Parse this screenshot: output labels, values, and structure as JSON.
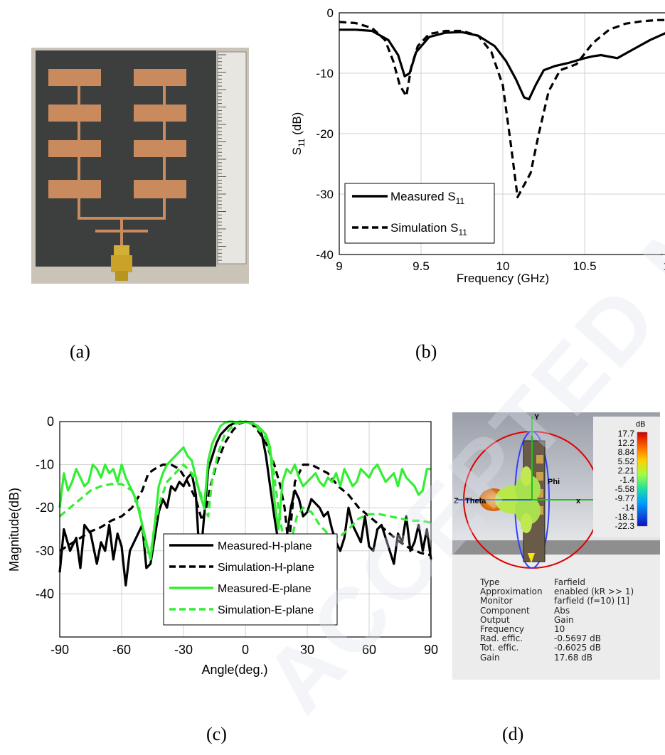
{
  "labels": {
    "a": "(a)",
    "b": "(b)",
    "c": "(c)",
    "d": "(d)"
  },
  "watermark": "ACCEPTED MANUSCRIPT",
  "colors": {
    "measured_e": "#33ee33",
    "simulated_e": "#33ee33",
    "measured_h": "#000000",
    "simulated_h": "#000000"
  },
  "chart_data": [
    {
      "type": "line",
      "xlabel": "Frequency (GHz)",
      "ylabel": "S11 (dB)",
      "ylabel_main": "S",
      "ylabel_sub": "11",
      "ylabel_suffix": " (dB)",
      "xlim": [
        9,
        11
      ],
      "ylim": [
        -40,
        0
      ],
      "xticks": [
        "9",
        "9.5",
        "10",
        "10.5",
        "1"
      ],
      "yticks": [
        "0",
        "-10",
        "-20",
        "-30",
        "-40"
      ],
      "grid": true,
      "legend_position": "bottom-left",
      "series": [
        {
          "name": "Measured S11",
          "name_main": "Measured S",
          "name_sub": "11",
          "style": "solid",
          "x": [
            9.0,
            9.1,
            9.2,
            9.3,
            9.36,
            9.4,
            9.43,
            9.47,
            9.55,
            9.65,
            9.75,
            9.85,
            9.95,
            10.02,
            10.08,
            10.13,
            10.16,
            10.2,
            10.25,
            10.32,
            10.4,
            10.5,
            10.55,
            10.6,
            10.7,
            10.8,
            10.9,
            11.0
          ],
          "y": [
            -2.8,
            -2.8,
            -3.0,
            -4.5,
            -7.0,
            -10.5,
            -10.0,
            -6.5,
            -4.0,
            -3.3,
            -3.2,
            -3.8,
            -5.5,
            -8.0,
            -11.0,
            -14.0,
            -14.3,
            -12.0,
            -9.5,
            -8.8,
            -8.3,
            -7.5,
            -7.2,
            -7.0,
            -7.5,
            -6.0,
            -4.5,
            -3.3
          ]
        },
        {
          "name": "Simulation S11",
          "name_main": "Simulation S",
          "name_sub": "11",
          "style": "dashed",
          "x": [
            9.0,
            9.1,
            9.2,
            9.28,
            9.33,
            9.37,
            9.41,
            9.44,
            9.48,
            9.55,
            9.65,
            9.75,
            9.85,
            9.93,
            10.0,
            10.05,
            10.09,
            10.12,
            10.17,
            10.22,
            10.28,
            10.35,
            10.45,
            10.55,
            10.65,
            10.75,
            10.85,
            10.95,
            11.0
          ],
          "y": [
            -1.5,
            -1.7,
            -2.5,
            -4.5,
            -8.0,
            -12.0,
            -13.8,
            -9.0,
            -5.5,
            -3.5,
            -3.0,
            -3.0,
            -3.8,
            -6.5,
            -12.0,
            -22.0,
            -30.5,
            -29.0,
            -26.5,
            -20.0,
            -13.0,
            -9.5,
            -8.5,
            -5.0,
            -2.8,
            -1.8,
            -1.4,
            -1.2,
            -1.2
          ]
        }
      ]
    },
    {
      "type": "line",
      "xlabel": "Angle(deg.)",
      "ylabel": "Magnitude(dB)",
      "xlim": [
        -90,
        90
      ],
      "ylim": [
        -50,
        0
      ],
      "xticks": [
        "-90",
        "-60",
        "-30",
        "0",
        "30",
        "60",
        "90"
      ],
      "yticks": [
        "0",
        "-10",
        "-20",
        "-30",
        "-40"
      ],
      "grid": true,
      "legend_position": "bottom-center",
      "series": [
        {
          "name": "Measured-H-plane",
          "style": "solid",
          "color": "#000000",
          "x": [
            -90,
            -88,
            -85,
            -82,
            -80,
            -78,
            -75,
            -72,
            -70,
            -68,
            -66,
            -64,
            -62,
            -60,
            -58,
            -56,
            -54,
            -52,
            -50,
            -48,
            -46,
            -44,
            -42,
            -40,
            -38,
            -36,
            -34,
            -32,
            -30,
            -28,
            -26,
            -24,
            -22,
            -20,
            -18,
            -16,
            -14,
            -12,
            -10,
            -8,
            -6,
            -4,
            -2,
            0,
            2,
            4,
            6,
            8,
            10,
            12,
            14,
            16,
            18,
            20,
            22,
            24,
            26,
            28,
            30,
            32,
            34,
            36,
            38,
            40,
            42,
            44,
            46,
            48,
            50,
            52,
            54,
            56,
            58,
            60,
            62,
            64,
            66,
            68,
            70,
            72,
            74,
            76,
            78,
            80,
            82,
            84,
            86,
            88,
            90
          ],
          "y": [
            -35,
            -25,
            -30,
            -27,
            -34,
            -24,
            -26,
            -33,
            -28,
            -30,
            -24,
            -32,
            -26,
            -29,
            -38,
            -30,
            -28,
            -26,
            -24,
            -34,
            -33,
            -27,
            -21,
            -18,
            -20,
            -15,
            -16,
            -14,
            -15,
            -13,
            -12,
            -17,
            -33,
            -22,
            -11,
            -8,
            -5,
            -3,
            -2,
            -1,
            -0.5,
            -0.2,
            -0.3,
            0,
            -0.2,
            -0.5,
            -1.5,
            -3,
            -8,
            -15,
            -22,
            -28,
            -33,
            -27,
            -20,
            -16,
            -18,
            -22,
            -21,
            -18,
            -19,
            -20,
            -22,
            -21,
            -25,
            -28,
            -30,
            -27,
            -20,
            -24,
            -26,
            -28,
            -22,
            -29,
            -30,
            -25,
            -24,
            -27,
            -30,
            -33,
            -26,
            -28,
            -22,
            -30,
            -28,
            -24,
            -30,
            -25,
            -32
          ]
        },
        {
          "name": "Simulation-H-plane",
          "style": "dashed",
          "color": "#000000",
          "x": [
            -90,
            -85,
            -80,
            -75,
            -70,
            -65,
            -60,
            -55,
            -50,
            -47,
            -44,
            -40,
            -36,
            -32,
            -28,
            -24,
            -21,
            -19,
            -17,
            -14,
            -10,
            -6,
            -3,
            0,
            3,
            6,
            10,
            14,
            17,
            19,
            21,
            24,
            28,
            32,
            36,
            40,
            45,
            50,
            55,
            60,
            65,
            70,
            75,
            80,
            85,
            90
          ],
          "y": [
            -30,
            -28.5,
            -27,
            -25.5,
            -24.5,
            -23,
            -22,
            -20,
            -16,
            -12,
            -11,
            -10,
            -10,
            -11,
            -14,
            -18,
            -23,
            -20,
            -15,
            -10,
            -5,
            -2,
            -0.5,
            0,
            -0.5,
            -2,
            -5,
            -10,
            -15,
            -20,
            -29,
            -14,
            -10,
            -10,
            -11,
            -12,
            -15,
            -17,
            -20,
            -22,
            -24,
            -26,
            -28,
            -29.5,
            -30.5,
            -31
          ]
        },
        {
          "name": "Measured-E-plane",
          "style": "solid",
          "color": "#33ee33",
          "x": [
            -90,
            -88,
            -86,
            -84,
            -82,
            -80,
            -78,
            -76,
            -74,
            -72,
            -70,
            -68,
            -66,
            -64,
            -62,
            -60,
            -58,
            -56,
            -54,
            -52,
            -50,
            -48,
            -46,
            -44,
            -42,
            -40,
            -38,
            -36,
            -34,
            -32,
            -30,
            -28,
            -26,
            -24,
            -22,
            -20,
            -18,
            -16,
            -14,
            -12,
            -10,
            -8,
            -6,
            -4,
            -2,
            0,
            2,
            4,
            6,
            8,
            10,
            12,
            14,
            16,
            18,
            20,
            22,
            24,
            26,
            28,
            30,
            32,
            34,
            36,
            38,
            40,
            42,
            44,
            46,
            48,
            50,
            52,
            54,
            56,
            58,
            60,
            62,
            64,
            66,
            68,
            70,
            72,
            74,
            76,
            78,
            80,
            82,
            84,
            86,
            88,
            90
          ],
          "y": [
            -20,
            -12,
            -16,
            -14,
            -11,
            -13,
            -15,
            -14,
            -10,
            -11,
            -13,
            -10,
            -12,
            -11,
            -14,
            -10,
            -13,
            -15,
            -17,
            -20,
            -24,
            -28,
            -32,
            -24,
            -15,
            -12,
            -10,
            -9,
            -8,
            -7,
            -6,
            -8,
            -9,
            -13,
            -17,
            -20,
            -9,
            -5,
            -3,
            -1,
            -0.3,
            0,
            0,
            -0.5,
            -0.2,
            0,
            -0.2,
            -0.5,
            -1,
            -2,
            -3,
            -6,
            -18,
            -25,
            -14,
            -11,
            -12,
            -10,
            -13,
            -15,
            -14,
            -13,
            -12,
            -14,
            -15,
            -13,
            -14,
            -12,
            -15,
            -11,
            -13,
            -15,
            -14,
            -11,
            -12,
            -13,
            -11,
            -10,
            -12,
            -14,
            -13,
            -12,
            -15,
            -11,
            -13,
            -14,
            -15,
            -17,
            -16,
            -11,
            -11
          ]
        },
        {
          "name": "Simulation-E-plane",
          "style": "dashed",
          "color": "#33ee33",
          "x": [
            -90,
            -85,
            -80,
            -75,
            -70,
            -65,
            -60,
            -55,
            -52,
            -50,
            -48,
            -46,
            -44,
            -41,
            -38,
            -34,
            -30,
            -26,
            -22,
            -20,
            -18,
            -16,
            -13,
            -10,
            -6,
            -3,
            0,
            3,
            6,
            10,
            13,
            16,
            18,
            20,
            22,
            25,
            28,
            32,
            36,
            40,
            45,
            50,
            55,
            60,
            65,
            70,
            75,
            80,
            85,
            90
          ],
          "y": [
            -22,
            -20,
            -18,
            -16,
            -15,
            -14.5,
            -14.5,
            -16,
            -19,
            -24,
            -30,
            -31,
            -24,
            -18,
            -14,
            -12,
            -10,
            -12,
            -16,
            -20,
            -22,
            -13,
            -7,
            -3,
            -1,
            0,
            0,
            -0.5,
            -1.5,
            -4,
            -9,
            -20,
            -26,
            -30,
            -28,
            -22,
            -20,
            -21,
            -24,
            -26,
            -27,
            -25,
            -22.5,
            -21.5,
            -21.5,
            -22,
            -22.5,
            -23,
            -23,
            -23.5
          ]
        }
      ]
    }
  ],
  "cst": {
    "color_title": "dB",
    "color_ticks": [
      "17.7",
      "12.2",
      "8.84",
      "5.52",
      "2.21",
      "-1.4",
      "-5.58",
      "-9.77",
      "-14",
      "-18.1",
      "-22.3"
    ],
    "axes": {
      "y": "Y",
      "z": "Z",
      "x": "x",
      "theta": "Theta",
      "phi": "Phi"
    },
    "info": [
      {
        "k": "Type",
        "v": "Farfield"
      },
      {
        "k": "Approximation",
        "v": "enabled (kR >> 1)"
      },
      {
        "k": "Monitor",
        "v": "farfield (f=10) [1]"
      },
      {
        "k": "Component",
        "v": "Abs"
      },
      {
        "k": "Output",
        "v": "Gain"
      },
      {
        "k": "Frequency",
        "v": "10"
      },
      {
        "k": "Rad. effic.",
        "v": "-0.5697 dB"
      },
      {
        "k": "Tot. effic.",
        "v": "-0.6025 dB"
      },
      {
        "k": "Gain",
        "v": "17.68 dB"
      }
    ]
  }
}
